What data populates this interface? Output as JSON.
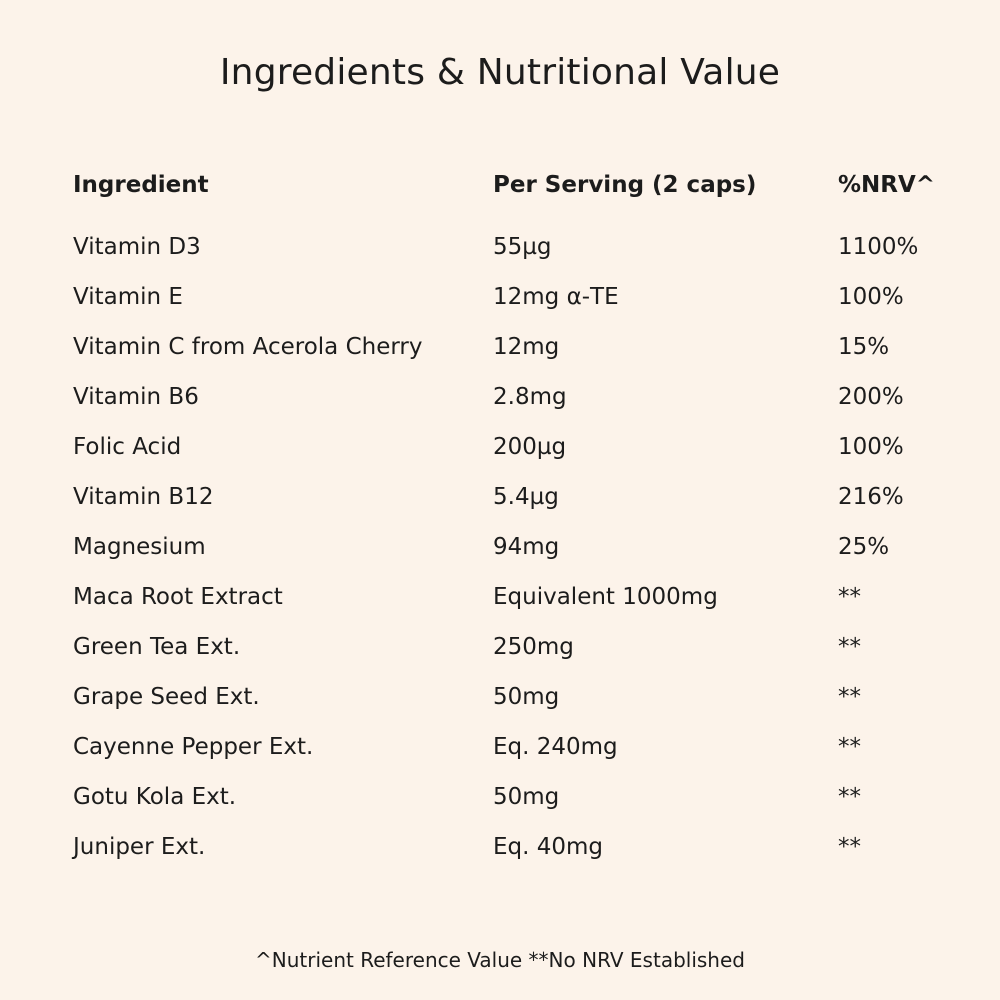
{
  "title": "Ingredients & Nutritional Value",
  "table": {
    "headers": [
      "Ingredient",
      "Per Serving (2 caps)",
      "%NRV^"
    ],
    "rows": [
      [
        "Vitamin D3",
        "55µg",
        "1100%"
      ],
      [
        "Vitamin E",
        "12mg α-TE",
        "100%"
      ],
      [
        "Vitamin C from Acerola Cherry",
        "12mg",
        "15%"
      ],
      [
        "Vitamin B6",
        "2.8mg",
        "200%"
      ],
      [
        "Folic Acid",
        "200µg",
        "100%"
      ],
      [
        "Vitamin B12",
        "5.4µg",
        "216%"
      ],
      [
        "Magnesium",
        "94mg",
        "25%"
      ],
      [
        "Maca Root Extract",
        "Equivalent 1000mg",
        "**"
      ],
      [
        "Green Tea Ext.",
        "250mg",
        "**"
      ],
      [
        "Grape Seed Ext.",
        "50mg",
        "**"
      ],
      [
        "Cayenne Pepper Ext.",
        "Eq. 240mg",
        "**"
      ],
      [
        "Gotu Kola Ext.",
        "50mg",
        "**"
      ],
      [
        "Juniper Ext.",
        "Eq. 40mg",
        "**"
      ]
    ]
  },
  "footer": "^Nutrient Reference Value **No NRV Established"
}
